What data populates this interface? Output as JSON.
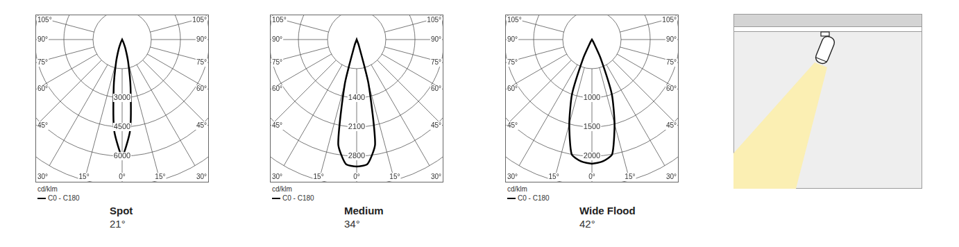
{
  "chart_data": [
    {
      "type": "radar",
      "title": "Spot",
      "subtitle": "21°",
      "y_label": "cd/klm",
      "categories": [
        "0°",
        null,
        null,
        "15°",
        null,
        null,
        "30°",
        null,
        null,
        "45°",
        null,
        null,
        "60°",
        null,
        null,
        "75°",
        null,
        null,
        "90°",
        null,
        null,
        "105°",
        null,
        null,
        null,
        null,
        null,
        null,
        null,
        null,
        null,
        null,
        null,
        null,
        null,
        null,
        null,
        null,
        null,
        null,
        null,
        null,
        null,
        null,
        null,
        null,
        null,
        null,
        null,
        null,
        null,
        "105°",
        null,
        null,
        "90°",
        null,
        null,
        "75°",
        null,
        null,
        "60°",
        null,
        null,
        "45°",
        null,
        null,
        "30°",
        null,
        null,
        "15°",
        null,
        null
      ],
      "series": [
        {
          "name": "C0 - C180",
          "color": "#000000",
          "values": [
            6000,
            4700,
            2500,
            1200,
            500,
            150,
            0,
            0,
            0,
            0,
            0,
            0,
            0,
            0,
            0,
            0,
            0,
            0,
            0,
            0,
            0,
            0,
            0,
            0,
            0,
            0,
            0,
            0,
            0,
            0,
            0,
            0,
            0,
            0,
            0,
            0,
            0,
            0,
            0,
            0,
            0,
            0,
            0,
            0,
            0,
            0,
            0,
            0,
            0,
            0,
            0,
            0,
            0,
            0,
            0,
            0,
            0,
            0,
            0,
            0,
            0,
            0,
            0,
            0,
            0,
            0,
            0,
            150,
            500,
            1200,
            2500,
            4700
          ]
        }
      ],
      "ylim": [
        0,
        7500
      ],
      "yticks": [
        3000,
        4500,
        6000
      ],
      "grid": true,
      "legend": "bottom-left"
    },
    {
      "type": "radar",
      "title": "Medium",
      "subtitle": "34°",
      "y_label": "cd/klm",
      "categories": [
        "0°",
        null,
        null,
        "15°",
        null,
        null,
        "30°",
        null,
        null,
        "45°",
        null,
        null,
        "60°",
        null,
        null,
        "75°",
        null,
        null,
        "90°",
        null,
        null,
        "105°",
        null,
        null,
        null,
        null,
        null,
        null,
        null,
        null,
        null,
        null,
        null,
        null,
        null,
        null,
        null,
        null,
        null,
        null,
        null,
        null,
        null,
        null,
        null,
        null,
        null,
        null,
        null,
        null,
        null,
        "105°",
        null,
        null,
        "90°",
        null,
        null,
        "75°",
        null,
        null,
        "60°",
        null,
        null,
        "45°",
        null,
        null,
        "30°",
        null,
        null,
        "15°",
        null,
        null
      ],
      "series": [
        {
          "name": "C0 - C180",
          "color": "#000000",
          "values": [
            3050,
            3000,
            2550,
            1100,
            150,
            0,
            0,
            0,
            0,
            0,
            0,
            0,
            0,
            0,
            0,
            0,
            0,
            0,
            0,
            0,
            0,
            0,
            0,
            0,
            0,
            0,
            0,
            0,
            0,
            0,
            0,
            0,
            0,
            0,
            0,
            0,
            0,
            0,
            0,
            0,
            0,
            0,
            0,
            0,
            0,
            0,
            0,
            0,
            0,
            0,
            0,
            0,
            0,
            0,
            0,
            0,
            0,
            0,
            0,
            0,
            0,
            0,
            0,
            0,
            0,
            0,
            0,
            0,
            150,
            1100,
            2550,
            3000
          ]
        }
      ],
      "ylim": [
        0,
        3500
      ],
      "yticks": [
        1400,
        2100,
        2800
      ],
      "grid": true,
      "legend": "bottom-left"
    },
    {
      "type": "radar",
      "title": "Wide Flood",
      "subtitle": "42°",
      "y_label": "cd/klm",
      "categories": [
        "0°",
        null,
        null,
        "15°",
        null,
        null,
        "30°",
        null,
        null,
        "45°",
        null,
        null,
        "60°",
        null,
        null,
        "75°",
        null,
        null,
        "90°",
        null,
        null,
        "105°",
        null,
        null,
        null,
        null,
        null,
        null,
        null,
        null,
        null,
        null,
        null,
        null,
        null,
        null,
        null,
        null,
        null,
        null,
        null,
        null,
        null,
        null,
        null,
        null,
        null,
        null,
        null,
        null,
        null,
        "105°",
        null,
        null,
        "90°",
        null,
        null,
        "75°",
        null,
        null,
        "60°",
        null,
        null,
        "45°",
        null,
        null,
        "30°",
        null,
        null,
        "15°",
        null,
        null
      ],
      "series": [
        {
          "name": "C0 - C180",
          "color": "#000000",
          "values": [
            2130,
            2100,
            2000,
            1500,
            1000,
            350,
            50,
            0,
            0,
            0,
            0,
            0,
            0,
            0,
            0,
            0,
            0,
            0,
            0,
            0,
            0,
            0,
            0,
            0,
            0,
            0,
            0,
            0,
            0,
            0,
            0,
            0,
            0,
            0,
            0,
            0,
            0,
            0,
            0,
            0,
            0,
            0,
            0,
            0,
            0,
            0,
            0,
            0,
            0,
            0,
            0,
            0,
            0,
            0,
            0,
            0,
            0,
            0,
            0,
            0,
            0,
            0,
            0,
            0,
            0,
            0,
            50,
            350,
            1000,
            1500,
            2000,
            2100
          ]
        }
      ],
      "ylim": [
        0,
        2500
      ],
      "yticks": [
        1000,
        1500,
        2000
      ],
      "grid": true,
      "legend": "bottom-left"
    }
  ]
}
